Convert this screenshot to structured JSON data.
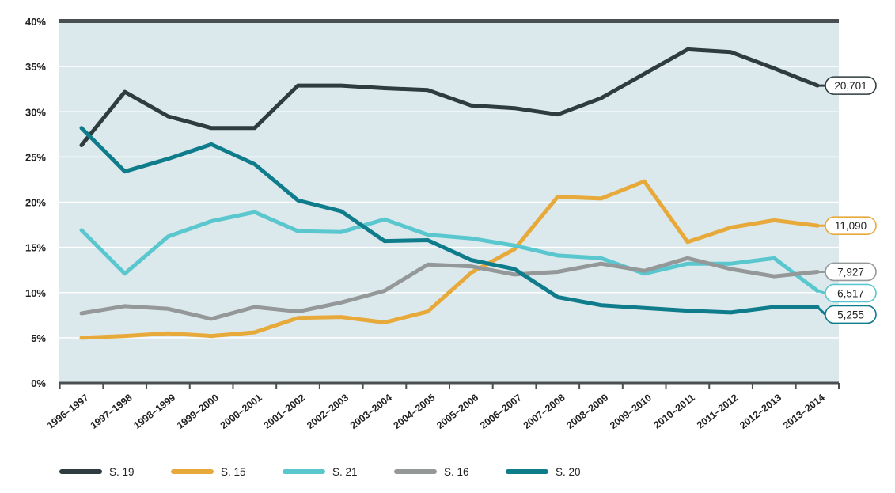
{
  "chart_data": {
    "type": "line",
    "title": "",
    "xlabel": "",
    "ylabel": "",
    "ylim": [
      0,
      40
    ],
    "yticks": [
      0,
      5,
      10,
      15,
      20,
      25,
      30,
      35,
      40
    ],
    "ytick_labels": [
      "0%",
      "5%",
      "10%",
      "15%",
      "20%",
      "25%",
      "30%",
      "35%",
      "40%"
    ],
    "grid": true,
    "legend_position": "bottom-left",
    "categories": [
      "1996–1997",
      "1997–1998",
      "1998–1999",
      "1999–2000",
      "2000–2001",
      "2001–2002",
      "2002–2003",
      "2003–2004",
      "2004–2005",
      "2005–2006",
      "2006–2007",
      "2007–2008",
      "2008–2009",
      "2009–2010",
      "2010–2011",
      "2011–2012",
      "2012–2013",
      "2013–2014"
    ],
    "series": [
      {
        "name": "S. 19",
        "color": "#2e3c3f",
        "end_label": "20,701",
        "values": [
          26.3,
          32.2,
          29.5,
          28.2,
          28.2,
          32.9,
          32.9,
          32.6,
          32.4,
          30.7,
          30.4,
          29.7,
          31.5,
          34.2,
          36.9,
          36.6,
          34.8,
          32.9
        ]
      },
      {
        "name": "S. 15",
        "color": "#e8a93b",
        "end_label": "11,090",
        "values": [
          5.0,
          5.2,
          5.5,
          5.2,
          5.6,
          7.2,
          7.3,
          6.7,
          7.9,
          12.2,
          14.8,
          20.6,
          20.4,
          22.3,
          15.6,
          17.2,
          18.0,
          17.4
        ]
      },
      {
        "name": "S. 21",
        "color": "#5ac7cf",
        "end_label": "6,517",
        "values": [
          16.9,
          12.1,
          16.2,
          17.9,
          18.9,
          16.8,
          16.7,
          18.1,
          16.4,
          16.0,
          15.2,
          14.1,
          13.8,
          12.1,
          13.2,
          13.2,
          13.8,
          10.2
        ]
      },
      {
        "name": "S. 16",
        "color": "#949899",
        "end_label": "7,927",
        "values": [
          7.7,
          8.5,
          8.2,
          7.1,
          8.4,
          7.9,
          8.9,
          10.2,
          13.1,
          12.9,
          12.0,
          12.3,
          13.2,
          12.4,
          13.8,
          12.6,
          11.8,
          12.3
        ]
      },
      {
        "name": "S. 20",
        "color": "#0f7c8c",
        "end_label": "5,255",
        "values": [
          28.2,
          23.4,
          24.8,
          26.4,
          24.2,
          20.2,
          19.0,
          15.7,
          15.8,
          13.6,
          12.6,
          9.5,
          8.6,
          8.3,
          8.0,
          7.8,
          8.4,
          8.4
        ]
      }
    ]
  }
}
